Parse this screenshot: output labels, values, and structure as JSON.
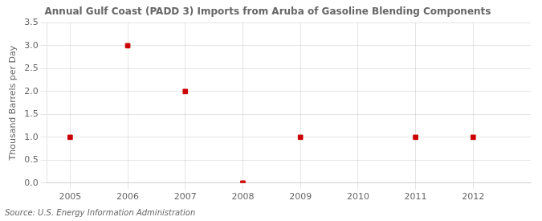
{
  "chart_data": {
    "type": "scatter",
    "title": "Annual Gulf Coast (PADD 3) Imports from Aruba of Gasoline Blending Components",
    "ylabel": "Thousand Barrels per Day",
    "annotations": [
      "Source: U.S. Energy Information Administration"
    ],
    "x": [
      2005,
      2006,
      2007,
      2008,
      2009,
      2011,
      2012
    ],
    "values": [
      1.0,
      3.0,
      2.0,
      0.0,
      1.0,
      1.0,
      1.0
    ],
    "color": "#cc0000",
    "marker": "square",
    "xlim": [
      2004.6,
      2013.0
    ],
    "xticks": [
      2005,
      2006,
      2007,
      2008,
      2009,
      2010,
      2011,
      2012
    ],
    "ylim": [
      0.0,
      3.5
    ],
    "yticks": [
      {
        "value": 0,
        "label": "0.0"
      },
      0.5,
      {
        "value": 1,
        "label": "1.0"
      },
      1.5,
      {
        "value": 2,
        "label": "2.0"
      },
      2.5,
      {
        "value": 3,
        "label": "3.0"
      },
      3.5
    ],
    "grid": true
  }
}
